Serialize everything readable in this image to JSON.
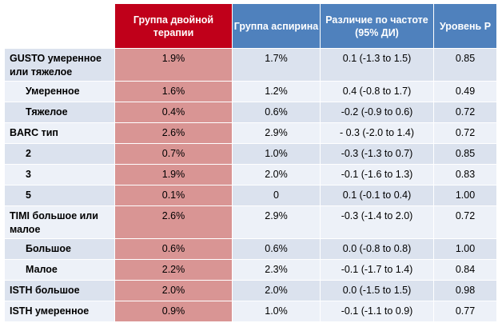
{
  "headers": {
    "label": "",
    "dual": "Группа двойной терапии",
    "aspirin": "Группа аспирина",
    "diff": "Различие по частоте (95% ДИ)",
    "p": "Уровень P"
  },
  "colors": {
    "dual_header": "#c0001a",
    "dual_cells": "#d99594",
    "other_header": "#4f81bd",
    "row_a": "#dbe2ee",
    "row_b": "#edf1f8"
  },
  "rows": [
    {
      "label": "GUSTO умеренное или тяжелое",
      "dual": "1.9%",
      "aspirin": "1.7%",
      "diff": "0.1 (-1.3 to 1.5)",
      "p": "0.85"
    },
    {
      "label": "Умеренное",
      "dual": "1.6%",
      "aspirin": "1.2%",
      "diff": "0.4 (-0.8 to 1.7)",
      "p": "0.49"
    },
    {
      "label": "Тяжелое",
      "dual": "0.4%",
      "aspirin": "0.6%",
      "diff": "-0.2 (-0.9 to 0.6)",
      "p": "0.72"
    },
    {
      "label": "BARC тип",
      "dual": "2.6%",
      "aspirin": "2.9%",
      "diff": "- 0.3 (-2.0 to 1.4)",
      "p": "0.72"
    },
    {
      "label": "2",
      "dual": "0.7%",
      "aspirin": "1.0%",
      "diff": "-0.3 (-1.3 to 0.7)",
      "p": "0.85"
    },
    {
      "label": "3",
      "dual": "1.9%",
      "aspirin": "2.0%",
      "diff": "-0.1 (-1.6 to 1.3)",
      "p": "0.83"
    },
    {
      "label": "5",
      "dual": "0.1%",
      "aspirin": "0",
      "diff": "0.1 (-0.1 to 0.4)",
      "p": "1.00"
    },
    {
      "label": "TIMI большое или малое",
      "dual": "2.6%",
      "aspirin": "2.9%",
      "diff": "-0.3 (-1.4 to 2.0)",
      "p": "0.72"
    },
    {
      "label": "Большое",
      "dual": "0.6%",
      "aspirin": "0.6%",
      "diff": "0.0 (-0.8 to 0.8)",
      "p": "1.00"
    },
    {
      "label": "Малое",
      "dual": "2.2%",
      "aspirin": "2.3%",
      "diff": "-0.1 (-1.7 to 1.4)",
      "p": "0.84"
    },
    {
      "label": "ISTH большое",
      "dual": "2.0%",
      "aspirin": "2.0%",
      "diff": "0.0 (-1.5 to 1.5)",
      "p": "0.98"
    },
    {
      "label": "ISTH умеренное",
      "dual": "0.9%",
      "aspirin": "1.0%",
      "diff": "-0.1 (-1.1 to 0.9)",
      "p": "0.77"
    }
  ]
}
